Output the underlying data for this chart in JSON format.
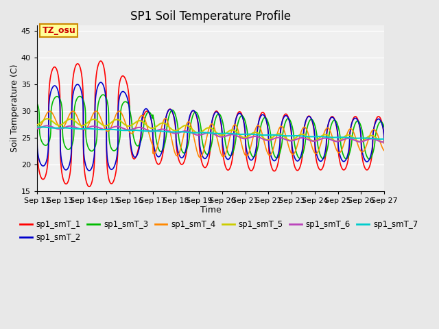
{
  "title": "SP1 Soil Temperature Profile",
  "xlabel": "Time",
  "ylabel": "Soil Temperature (C)",
  "ylim": [
    15,
    46
  ],
  "yticks": [
    15,
    20,
    25,
    30,
    35,
    40,
    45
  ],
  "xtick_labels": [
    "Sep 12",
    "Sep 13",
    "Sep 14",
    "Sep 15",
    "Sep 16",
    "Sep 17",
    "Sep 18",
    "Sep 19",
    "Sep 20",
    "Sep 21",
    "Sep 22",
    "Sep 23",
    "Sep 24",
    "Sep 25",
    "Sep 26",
    "Sep 27"
  ],
  "annotation_text": "TZ_osu",
  "annotation_color": "#cc0000",
  "annotation_bg": "#ffff99",
  "annotation_border": "#cc8800",
  "series_colors": {
    "sp1_smT_1": "#ff0000",
    "sp1_smT_2": "#0000cc",
    "sp1_smT_3": "#00bb00",
    "sp1_smT_4": "#ff8800",
    "sp1_smT_5": "#cccc00",
    "sp1_smT_6": "#bb44bb",
    "sp1_smT_7": "#00cccc"
  },
  "bg_color": "#e8e8e8",
  "plot_bg_color": "#f0f0f0",
  "grid_color": "#ffffff",
  "lw": 1.2
}
